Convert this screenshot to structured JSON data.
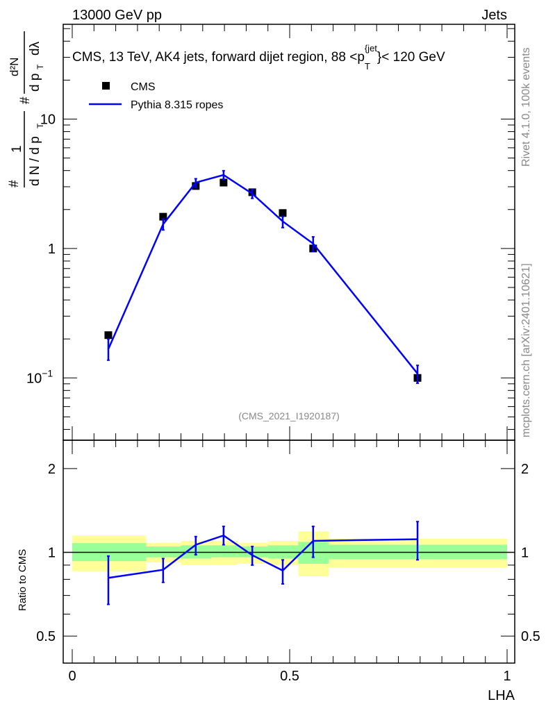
{
  "header": {
    "left": "13000 GeV pp",
    "right": "Jets"
  },
  "side_labels": {
    "rivet": "Rivet 4.1.0,  100k events",
    "mcplots": "mcplots.cern.ch [arXiv:2401.10621]"
  },
  "chart_data": [
    {
      "type": "scatter",
      "title": "CMS, 13 TeV, AK4 jets, forward dijet region, 88 <p_T^{jet}< 120 GeV",
      "title_main": "CMS, 13 TeV, AK4 jets, forward dijet region, 88 <p",
      "title_sub": "T",
      "title_sup": "{jet",
      "title_end": "}< 120 GeV",
      "ylabel": "1/(dN/dp_T) d²N/(dp_T dλ)",
      "ylabel_parts": {
        "one": "1",
        "den": "d N / d p",
        "num": "d²N",
        "den2": "d p",
        "sub": "T",
        "dl": "dλ",
        "hash": "#"
      },
      "yscale": "log",
      "ylim": [
        0.033,
        54
      ],
      "xlim": [
        -0.02,
        1.02
      ],
      "ytick_labels": [
        {
          "v": 10,
          "label": "10"
        },
        {
          "v": 1,
          "label": "1"
        },
        {
          "v": 0.1,
          "label": "10",
          "exp": "−1"
        }
      ],
      "watermark": "(CMS_2021_I1920187)",
      "legend": [
        {
          "label": "CMS",
          "color": "#000000"
        },
        {
          "label": "Pythia 8.315 ropes",
          "color": "#0000ff"
        }
      ],
      "legend_placement": "top-left",
      "x": [
        0.083,
        0.209,
        0.284,
        0.348,
        0.414,
        0.484,
        0.554,
        0.794
      ],
      "series": [
        {
          "name": "CMS",
          "values": [
            0.214,
            1.76,
            3.04,
            3.23,
            2.72,
            1.88,
            1.0,
            0.1
          ]
        },
        {
          "name": "Pythia 8.315 ropes",
          "values": [
            0.167,
            1.54,
            3.23,
            3.7,
            2.65,
            1.62,
            1.09,
            0.108
          ],
          "err_lo": [
            0.137,
            1.39,
            2.97,
            3.43,
            2.44,
            1.45,
            0.95,
            0.091
          ],
          "err_hi": [
            0.2,
            1.69,
            3.46,
            3.99,
            2.85,
            1.77,
            1.23,
            0.125
          ]
        }
      ]
    },
    {
      "type": "line",
      "ylabel": "Ratio to CMS",
      "xlabel": "LHA",
      "yscale": "log",
      "ylim": [
        0.4,
        2.53
      ],
      "ytick_labels": [
        {
          "v": 2,
          "label": "2"
        },
        {
          "v": 1,
          "label": "1"
        },
        {
          "v": 0.5,
          "label": "0.5"
        }
      ],
      "xtick_labels": [
        {
          "v": 0,
          "label": "0"
        },
        {
          "v": 0.5,
          "label": "0.5"
        },
        {
          "v": 1,
          "label": "1"
        }
      ],
      "bin_edges": [
        0,
        0.17,
        0.25,
        0.32,
        0.38,
        0.45,
        0.52,
        0.59,
        1.0
      ],
      "band_yellow": {
        "lo": [
          0.855,
          0.92,
          0.9,
          0.9,
          0.91,
          0.9,
          0.82,
          0.88
        ],
        "hi": [
          1.15,
          1.08,
          1.1,
          1.1,
          1.08,
          1.1,
          1.19,
          1.12
        ],
        "color": "#ffff99"
      },
      "band_green": {
        "lo": [
          0.93,
          0.96,
          0.95,
          0.96,
          0.96,
          0.95,
          0.91,
          0.945
        ],
        "hi": [
          1.08,
          1.05,
          1.06,
          1.06,
          1.05,
          1.06,
          1.09,
          1.065
        ],
        "color": "#99ff99"
      },
      "x": [
        0.083,
        0.209,
        0.284,
        0.348,
        0.414,
        0.484,
        0.554,
        0.794
      ],
      "ratio": [
        0.81,
        0.866,
        1.065,
        1.15,
        0.977,
        0.86,
        1.1,
        1.115
      ],
      "ratio_lo": [
        0.65,
        0.78,
        0.98,
        1.065,
        0.9,
        0.77,
        0.96,
        0.94
      ],
      "ratio_hi": [
        0.97,
        0.95,
        1.14,
        1.24,
        1.05,
        0.94,
        1.24,
        1.29
      ]
    }
  ]
}
